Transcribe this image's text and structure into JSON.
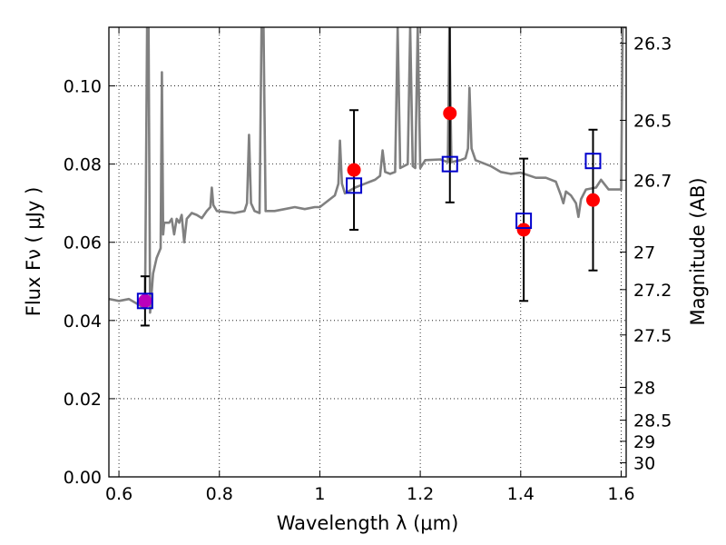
{
  "chart_data": {
    "type": "scatter",
    "xlabel": "Wavelength  λ (μm)",
    "ylabel": "Flux  Fν  ( μJy )",
    "y2label": "Magnitude (AB)",
    "xlim": [
      0.58,
      1.61
    ],
    "ylim": [
      0.0,
      0.115
    ],
    "x_ticks": [
      0.6,
      0.8,
      1.0,
      1.2,
      1.4,
      1.6
    ],
    "x_tick_labels": [
      "0.6",
      "0.8",
      "1",
      "1.2",
      "1.4",
      "1.6"
    ],
    "y_ticks": [
      0.0,
      0.02,
      0.04,
      0.06,
      0.08,
      0.1
    ],
    "y_tick_labels": [
      "0.00",
      "0.02",
      "0.04",
      "0.06",
      "0.08",
      "0.10"
    ],
    "y2_ticks": [
      {
        "label": "26.3",
        "flux": 0.1109
      },
      {
        "label": "26.5",
        "flux": 0.0912
      },
      {
        "label": "26.7",
        "flux": 0.0759
      },
      {
        "label": "27",
        "flux": 0.0575
      },
      {
        "label": "27.2",
        "flux": 0.0479
      },
      {
        "label": "27.5",
        "flux": 0.0363
      },
      {
        "label": "28",
        "flux": 0.0229
      },
      {
        "label": "28.5",
        "flux": 0.0145
      },
      {
        "label": "29",
        "flux": 0.0091
      },
      {
        "label": "30",
        "flux": 0.0036
      }
    ],
    "grid": true,
    "series": [
      {
        "kind": "model-spectrum",
        "color": "#808080",
        "points": [
          [
            0.58,
            0.0455
          ],
          [
            0.6,
            0.045
          ],
          [
            0.62,
            0.0455
          ],
          [
            0.64,
            0.044
          ],
          [
            0.652,
            0.043
          ],
          [
            0.656,
            0.115
          ],
          [
            0.659,
            0.115
          ],
          [
            0.662,
            0.042
          ],
          [
            0.668,
            0.052
          ],
          [
            0.675,
            0.056
          ],
          [
            0.683,
            0.0585
          ],
          [
            0.6855,
            0.1035
          ],
          [
            0.688,
            0.062
          ],
          [
            0.69,
            0.065
          ],
          [
            0.7,
            0.065
          ],
          [
            0.705,
            0.066
          ],
          [
            0.71,
            0.062
          ],
          [
            0.715,
            0.066
          ],
          [
            0.72,
            0.065
          ],
          [
            0.725,
            0.067
          ],
          [
            0.73,
            0.06
          ],
          [
            0.735,
            0.066
          ],
          [
            0.745,
            0.0675
          ],
          [
            0.755,
            0.067
          ],
          [
            0.765,
            0.0662
          ],
          [
            0.775,
            0.068
          ],
          [
            0.782,
            0.069
          ],
          [
            0.785,
            0.074
          ],
          [
            0.788,
            0.0695
          ],
          [
            0.795,
            0.068
          ],
          [
            0.81,
            0.0678
          ],
          [
            0.83,
            0.0675
          ],
          [
            0.85,
            0.068
          ],
          [
            0.855,
            0.07
          ],
          [
            0.859,
            0.0875
          ],
          [
            0.863,
            0.07
          ],
          [
            0.87,
            0.068
          ],
          [
            0.88,
            0.0675
          ],
          [
            0.884,
            0.115
          ],
          [
            0.888,
            0.115
          ],
          [
            0.892,
            0.068
          ],
          [
            0.91,
            0.068
          ],
          [
            0.93,
            0.0685
          ],
          [
            0.95,
            0.069
          ],
          [
            0.97,
            0.0685
          ],
          [
            0.99,
            0.069
          ],
          [
            1.0,
            0.069
          ],
          [
            1.02,
            0.071
          ],
          [
            1.03,
            0.072
          ],
          [
            1.037,
            0.075
          ],
          [
            1.04,
            0.086
          ],
          [
            1.044,
            0.075
          ],
          [
            1.05,
            0.0725
          ],
          [
            1.07,
            0.074
          ],
          [
            1.09,
            0.075
          ],
          [
            1.1,
            0.0755
          ],
          [
            1.11,
            0.076
          ],
          [
            1.12,
            0.077
          ],
          [
            1.125,
            0.0835
          ],
          [
            1.13,
            0.078
          ],
          [
            1.14,
            0.0775
          ],
          [
            1.15,
            0.078
          ],
          [
            1.155,
            0.115
          ],
          [
            1.16,
            0.079
          ],
          [
            1.175,
            0.08
          ],
          [
            1.18,
            0.115
          ],
          [
            1.185,
            0.0795
          ],
          [
            1.19,
            0.079
          ],
          [
            1.195,
            0.115
          ],
          [
            1.2,
            0.079
          ],
          [
            1.21,
            0.081
          ],
          [
            1.24,
            0.0812
          ],
          [
            1.255,
            0.0805
          ],
          [
            1.258,
            0.115
          ],
          [
            1.262,
            0.0805
          ],
          [
            1.28,
            0.081
          ],
          [
            1.29,
            0.0815
          ],
          [
            1.295,
            0.084
          ],
          [
            1.298,
            0.0995
          ],
          [
            1.302,
            0.084
          ],
          [
            1.31,
            0.081
          ],
          [
            1.34,
            0.0795
          ],
          [
            1.36,
            0.078
          ],
          [
            1.38,
            0.0775
          ],
          [
            1.4,
            0.0778
          ],
          [
            1.43,
            0.0765
          ],
          [
            1.45,
            0.0765
          ],
          [
            1.47,
            0.0755
          ],
          [
            1.48,
            0.072
          ],
          [
            1.485,
            0.07
          ],
          [
            1.49,
            0.073
          ],
          [
            1.5,
            0.072
          ],
          [
            1.51,
            0.07
          ],
          [
            1.515,
            0.0665
          ],
          [
            1.52,
            0.071
          ],
          [
            1.53,
            0.0735
          ],
          [
            1.55,
            0.074
          ],
          [
            1.56,
            0.076
          ],
          [
            1.575,
            0.0735
          ],
          [
            1.59,
            0.0735
          ],
          [
            1.6,
            0.0735
          ],
          [
            1.603,
            0.115
          ],
          [
            1.61,
            0.115
          ]
        ]
      },
      {
        "kind": "observed",
        "marker": "circle",
        "color": "#ff0000",
        "points": [
          {
            "x": 0.652,
            "y": 0.045,
            "err": 0.0063
          },
          {
            "x": 1.068,
            "y": 0.0785,
            "err": 0.0153
          },
          {
            "x": 1.259,
            "y": 0.093,
            "err": 0.0228
          },
          {
            "x": 1.406,
            "y": 0.0632,
            "err": 0.0182
          },
          {
            "x": 1.544,
            "y": 0.0708,
            "err": 0.018
          }
        ]
      },
      {
        "kind": "model-synthetic",
        "marker": "square",
        "color": "#0000cc",
        "points": [
          {
            "x": 0.652,
            "y": 0.045
          },
          {
            "x": 1.068,
            "y": 0.0745
          },
          {
            "x": 1.259,
            "y": 0.08
          },
          {
            "x": 1.406,
            "y": 0.0655
          },
          {
            "x": 1.544,
            "y": 0.0808
          }
        ]
      }
    ],
    "overlap_color": "#bb00bb"
  }
}
